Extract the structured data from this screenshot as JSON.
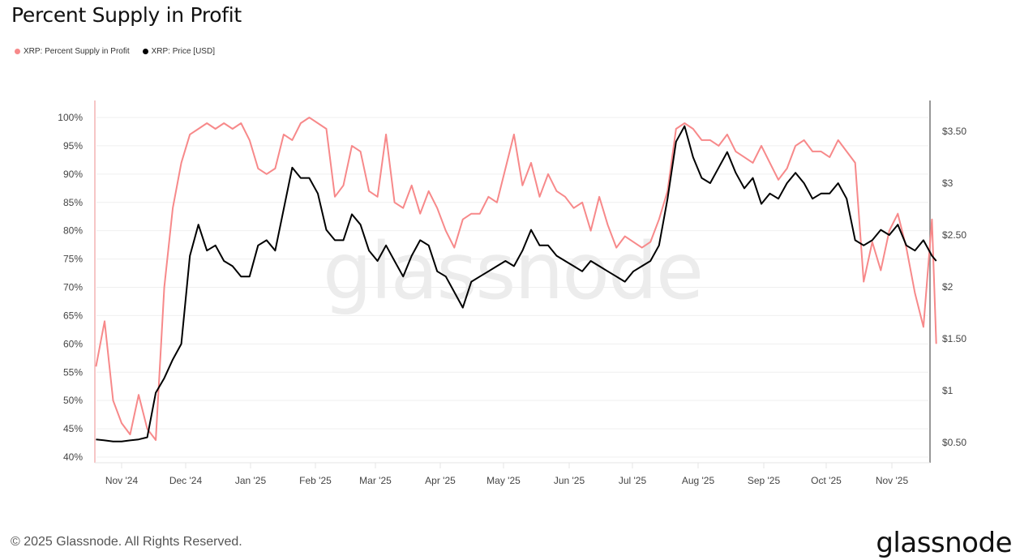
{
  "header": {
    "title": "Percent Supply in Profit"
  },
  "legend": [
    {
      "label": "XRP: Percent Supply in Profit",
      "color": "#f7898a"
    },
    {
      "label": "XRP: Price [USD]",
      "color": "#000000"
    }
  ],
  "footer": {
    "copyright": "© 2025 Glassnode. All Rights Reserved.",
    "logo": "glassnode"
  },
  "watermark": "glassnode",
  "chart_data": {
    "type": "line",
    "title": "Percent Supply in Profit",
    "xlabel": "",
    "ylabel": "",
    "y2label": "",
    "x_ticks": [
      "Nov '24",
      "Dec '24",
      "Jan '25",
      "Feb '25",
      "Mar '25",
      "Apr '25",
      "May '25",
      "Jun '25",
      "Jul '25",
      "Aug '25",
      "Sep '25",
      "Oct '25",
      "Nov '25"
    ],
    "y_ticks": [
      "100%",
      "95%",
      "90%",
      "85%",
      "80%",
      "75%",
      "70%",
      "65%",
      "60%",
      "55%",
      "50%",
      "45%",
      "40%"
    ],
    "y2_ticks": [
      "$3.50",
      "$3",
      "$2.50",
      "$2",
      "$1.50",
      "$1",
      "$0.50"
    ],
    "ylim": [
      40,
      100
    ],
    "y2lim": [
      0.35,
      3.65
    ],
    "grid": true,
    "legend_position": "top-left",
    "x": [
      "2024-10-20",
      "2024-10-24",
      "2024-10-28",
      "2024-11-01",
      "2024-11-05",
      "2024-11-09",
      "2024-11-13",
      "2024-11-17",
      "2024-11-21",
      "2024-11-25",
      "2024-11-29",
      "2024-12-03",
      "2024-12-07",
      "2024-12-11",
      "2024-12-15",
      "2024-12-19",
      "2024-12-23",
      "2024-12-27",
      "2024-12-31",
      "2025-01-04",
      "2025-01-08",
      "2025-01-12",
      "2025-01-16",
      "2025-01-20",
      "2025-01-24",
      "2025-01-28",
      "2025-02-01",
      "2025-02-05",
      "2025-02-09",
      "2025-02-13",
      "2025-02-17",
      "2025-02-21",
      "2025-02-25",
      "2025-03-01",
      "2025-03-05",
      "2025-03-09",
      "2025-03-13",
      "2025-03-17",
      "2025-03-21",
      "2025-03-25",
      "2025-03-29",
      "2025-04-02",
      "2025-04-06",
      "2025-04-10",
      "2025-04-14",
      "2025-04-18",
      "2025-04-22",
      "2025-04-26",
      "2025-04-30",
      "2025-05-04",
      "2025-05-08",
      "2025-05-12",
      "2025-05-16",
      "2025-05-20",
      "2025-05-24",
      "2025-05-28",
      "2025-06-01",
      "2025-06-05",
      "2025-06-09",
      "2025-06-13",
      "2025-06-17",
      "2025-06-21",
      "2025-06-25",
      "2025-06-29",
      "2025-07-03",
      "2025-07-07",
      "2025-07-11",
      "2025-07-15",
      "2025-07-19",
      "2025-07-23",
      "2025-07-27",
      "2025-07-31",
      "2025-08-04",
      "2025-08-08",
      "2025-08-12",
      "2025-08-16",
      "2025-08-20",
      "2025-08-24",
      "2025-08-28",
      "2025-09-01",
      "2025-09-05",
      "2025-09-09",
      "2025-09-13",
      "2025-09-17",
      "2025-09-21",
      "2025-09-25",
      "2025-09-29",
      "2025-10-03",
      "2025-10-07",
      "2025-10-11",
      "2025-10-15",
      "2025-10-19",
      "2025-10-23",
      "2025-10-27",
      "2025-10-31",
      "2025-11-04",
      "2025-11-08",
      "2025-11-12",
      "2025-11-16",
      "2025-11-18"
    ],
    "series": [
      {
        "name": "XRP: Percent Supply in Profit",
        "axis": "left",
        "color": "#f7898a",
        "values": [
          56,
          64,
          50,
          46,
          44,
          51,
          45,
          43,
          70,
          84,
          92,
          97,
          98,
          99,
          98,
          99,
          98,
          99,
          96,
          91,
          90,
          91,
          97,
          96,
          99,
          100,
          99,
          98,
          86,
          88,
          95,
          94,
          87,
          86,
          97,
          85,
          84,
          88,
          83,
          87,
          84,
          80,
          77,
          82,
          83,
          83,
          86,
          85,
          91,
          97,
          88,
          92,
          86,
          90,
          87,
          86,
          84,
          85,
          80,
          86,
          81,
          77,
          79,
          78,
          77,
          78,
          82,
          87,
          98,
          99,
          98,
          96,
          96,
          95,
          97,
          94,
          93,
          92,
          95,
          92,
          89,
          91,
          95,
          96,
          94,
          94,
          93,
          96,
          94,
          92,
          71,
          78,
          73,
          80,
          83,
          77,
          69,
          63,
          82,
          60
        ]
      },
      {
        "name": "XRP: Price [USD]",
        "axis": "right",
        "color": "#000000",
        "values": [
          0.53,
          0.52,
          0.51,
          0.51,
          0.52,
          0.53,
          0.55,
          0.98,
          1.12,
          1.3,
          1.45,
          2.3,
          2.6,
          2.35,
          2.4,
          2.25,
          2.2,
          2.1,
          2.1,
          2.4,
          2.45,
          2.35,
          2.75,
          3.15,
          3.05,
          3.05,
          2.9,
          2.55,
          2.45,
          2.45,
          2.7,
          2.6,
          2.35,
          2.25,
          2.4,
          2.25,
          2.1,
          2.3,
          2.45,
          2.4,
          2.15,
          2.1,
          1.95,
          1.8,
          2.05,
          2.1,
          2.15,
          2.2,
          2.25,
          2.2,
          2.35,
          2.55,
          2.4,
          2.4,
          2.3,
          2.25,
          2.2,
          2.15,
          2.25,
          2.2,
          2.15,
          2.1,
          2.05,
          2.15,
          2.2,
          2.25,
          2.4,
          2.85,
          3.4,
          3.55,
          3.25,
          3.05,
          3.0,
          3.15,
          3.3,
          3.1,
          2.95,
          3.05,
          2.8,
          2.9,
          2.85,
          3.0,
          3.1,
          3.0,
          2.85,
          2.9,
          2.9,
          3.0,
          2.85,
          2.45,
          2.4,
          2.45,
          2.55,
          2.5,
          2.6,
          2.4,
          2.35,
          2.45,
          2.3,
          2.25
        ]
      }
    ]
  }
}
